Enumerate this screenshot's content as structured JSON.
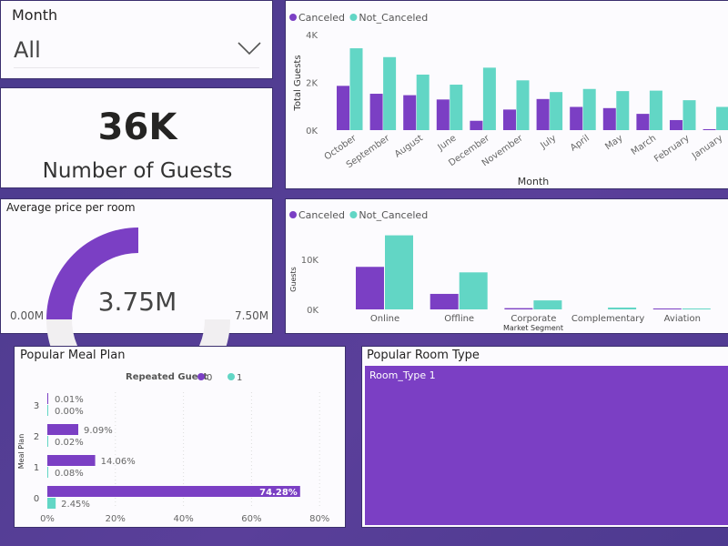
{
  "colors": {
    "canceled": "#7b3fc4",
    "not_canceled": "#62d6c5",
    "track": "#f1eff1",
    "treemap": "#7b3fc4"
  },
  "slicer": {
    "label": "Month",
    "value": "All",
    "icon": "chevron-down-icon"
  },
  "kpi": {
    "value": "36K",
    "label": "Number of Guests"
  },
  "gauge": {
    "title": "Average price per room",
    "value_label": "3.75M",
    "min_label": "0.00M",
    "max_label": "7.50M",
    "value": 3.75,
    "min": 0,
    "max": 7.5
  },
  "room_type": {
    "title": "Popular Room Type",
    "tile_label": "Room_Type 1"
  },
  "chart_data": [
    {
      "type": "bar",
      "id": "month",
      "xlabel": "Month",
      "ylabel": "Total Guests",
      "legend": [
        "Canceled",
        "Not_Canceled"
      ],
      "legend_position": "top-left",
      "yticks": [
        "0K",
        "2K",
        "4K"
      ],
      "ylim": [
        0,
        4000
      ],
      "categories": [
        "October",
        "September",
        "August",
        "June",
        "December",
        "November",
        "July",
        "April",
        "May",
        "March",
        "February",
        "January"
      ],
      "series": [
        {
          "name": "Canceled",
          "values": [
            1850,
            1520,
            1460,
            1280,
            390,
            860,
            1300,
            970,
            920,
            680,
            420,
            40
          ]
        },
        {
          "name": "Not_Canceled",
          "values": [
            3420,
            3050,
            2320,
            1900,
            2610,
            2080,
            1590,
            1720,
            1630,
            1650,
            1250,
            970
          ]
        }
      ]
    },
    {
      "type": "bar",
      "id": "segment",
      "xlabel": "Market Segment",
      "ylabel": "Guests",
      "legend": [
        "Canceled",
        "Not_Canceled"
      ],
      "legend_position": "top-left",
      "yticks": [
        "0K",
        "10K"
      ],
      "ylim": [
        0,
        16000
      ],
      "categories": [
        "Online",
        "Offline",
        "Corporate",
        "Complementary",
        "Aviation"
      ],
      "series": [
        {
          "name": "Canceled",
          "values": [
            8500,
            3100,
            250,
            0,
            100
          ]
        },
        {
          "name": "Not_Canceled",
          "values": [
            14800,
            7400,
            1800,
            370,
            100
          ]
        }
      ]
    },
    {
      "type": "bar",
      "id": "meal",
      "orientation": "horizontal",
      "title": "Popular Meal Plan",
      "ylabel": "Meal Plan",
      "legend_title": "Repeated Guest",
      "legend": [
        "0",
        "1"
      ],
      "legend_position": "top-center",
      "xticks": [
        "0%",
        "20%",
        "40%",
        "60%",
        "80%"
      ],
      "xlim": [
        0,
        80
      ],
      "categories": [
        "3",
        "2",
        "1",
        "0"
      ],
      "series": [
        {
          "name": "0",
          "values": [
            0.01,
            9.09,
            14.06,
            74.28
          ],
          "labels": [
            "0.01%",
            "9.09%",
            "14.06%",
            "74.28%"
          ]
        },
        {
          "name": "1",
          "values": [
            0.0,
            0.02,
            0.08,
            2.45
          ],
          "labels": [
            "0.00%",
            "0.02%",
            "0.08%",
            "2.45%"
          ]
        }
      ]
    }
  ]
}
